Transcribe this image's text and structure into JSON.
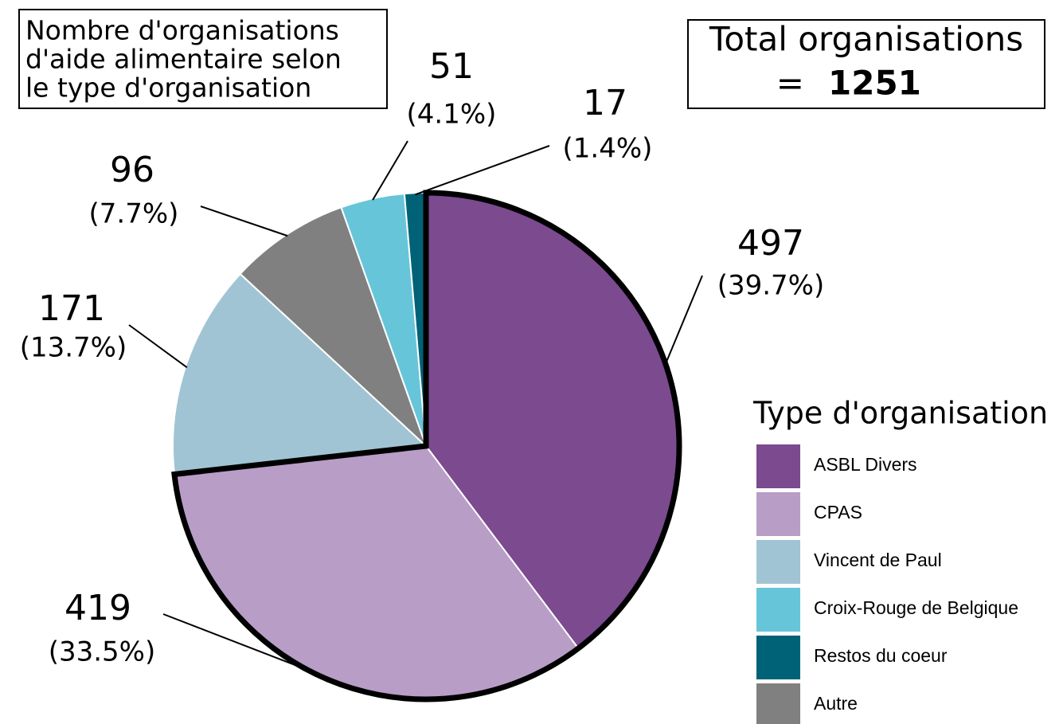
{
  "chart_data": {
    "type": "pie",
    "title": [
      "Nombre d'organisations",
      "d'aide alimentaire selon",
      "le type d'organisation"
    ],
    "total_label": "Total organisations",
    "total_prefix": "=",
    "total": 1251,
    "legend_title": "Type d'organisation",
    "categories": [
      "ASBL Divers",
      "CPAS",
      "Vincent de Paul",
      "Croix-Rouge de Belgique",
      "Restos du coeur",
      "Autre"
    ],
    "values": [
      497,
      419,
      171,
      51,
      17,
      96
    ],
    "percentages": [
      39.7,
      33.5,
      13.7,
      4.1,
      1.4,
      7.7
    ],
    "percentage_labels": [
      "(39.7%)",
      "(33.5%)",
      "(13.7%)",
      "(4.1%)",
      "(1.4%)",
      "(7.7%)"
    ],
    "colors": [
      "#7b4a8f",
      "#b89dc7",
      "#a0c4d4",
      "#67c5d9",
      "#006276",
      "#808080"
    ]
  }
}
